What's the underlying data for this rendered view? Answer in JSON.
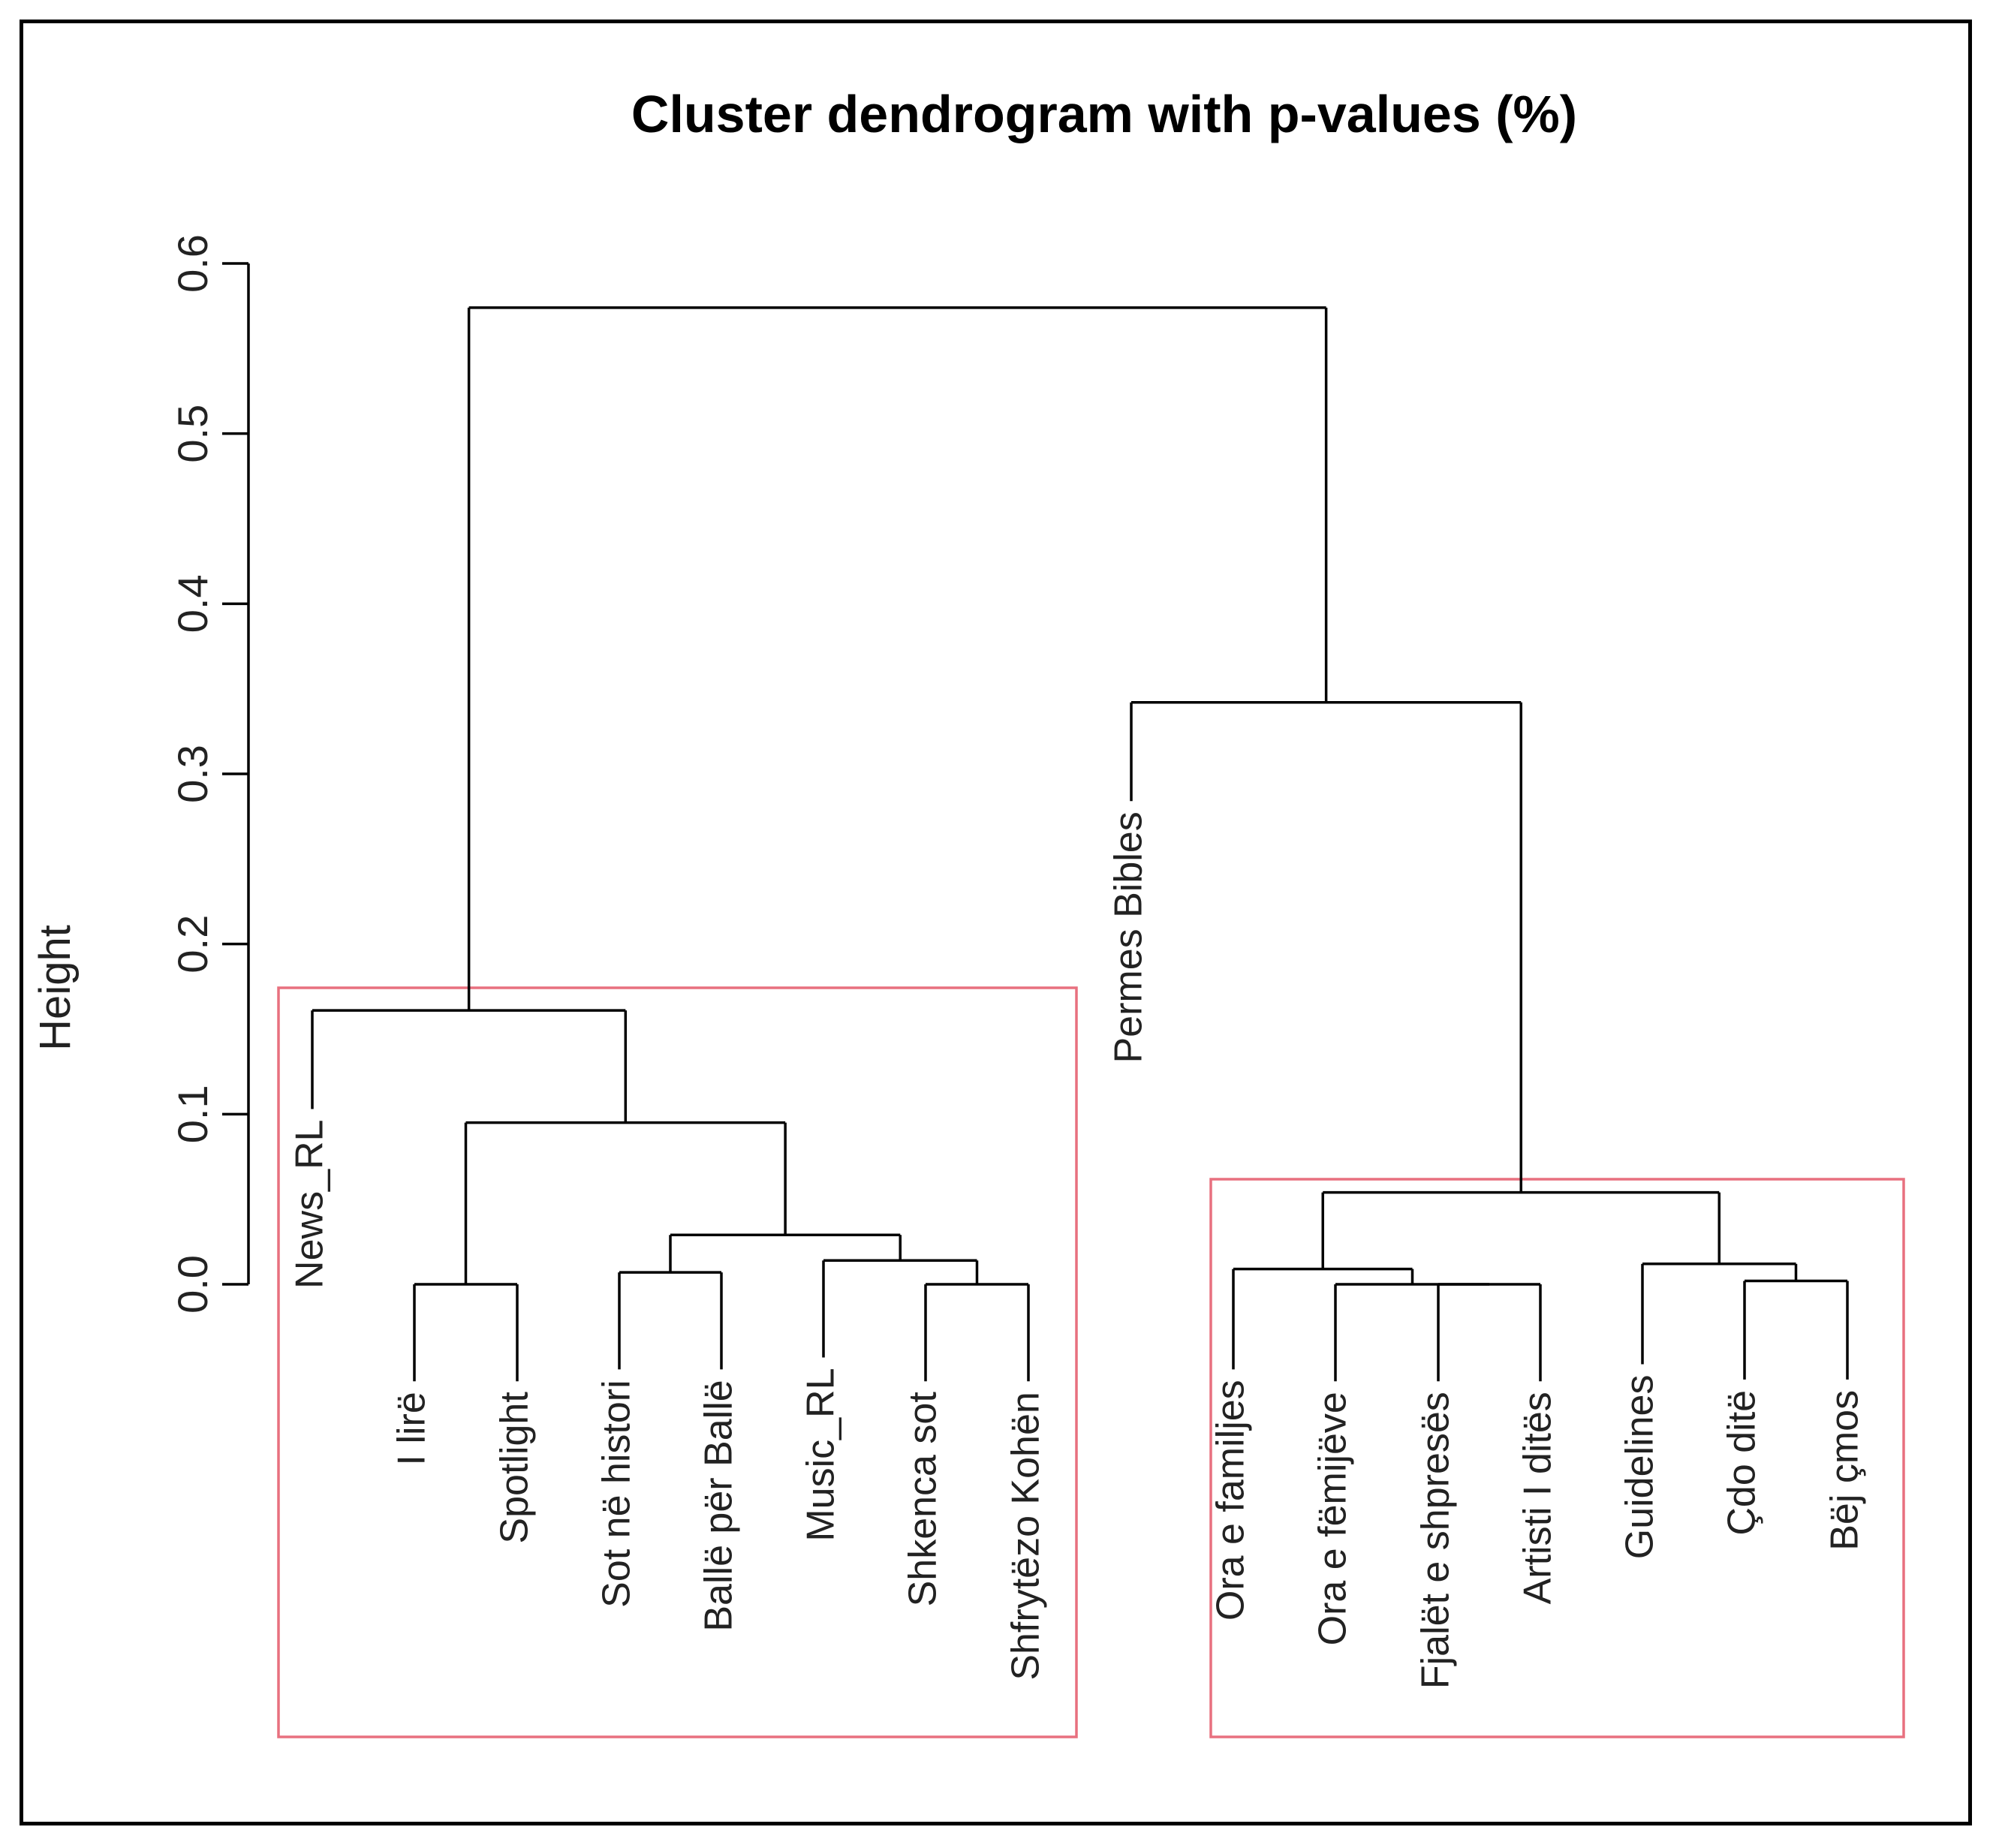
{
  "chart_data": {
    "type": "dendrogram",
    "title": "Cluster dendrogram with p-values (%)",
    "ylabel": "Height",
    "ylim": [
      0,
      0.6
    ],
    "yticks": [
      "0.0",
      "0.1",
      "0.2",
      "0.3",
      "0.4",
      "0.5",
      "0.6"
    ],
    "ytick_values": [
      0,
      0.1,
      0.2,
      0.3,
      0.4,
      0.5,
      0.6
    ],
    "leaves": [
      {
        "id": "news_rl",
        "label": "News_RL",
        "height": 0.103
      },
      {
        "id": "i_lire",
        "label": "I lirë",
        "height": -0.057
      },
      {
        "id": "spotlight",
        "label": "Spotlight",
        "height": -0.057
      },
      {
        "id": "sot_ne_histori",
        "label": "Sot në histori",
        "height": -0.05
      },
      {
        "id": "balle_per_balle",
        "label": "Ballë për Ballë",
        "height": -0.05
      },
      {
        "id": "music_rl",
        "label": "Music_RL",
        "height": -0.043
      },
      {
        "id": "shkenca_sot",
        "label": "Shkenca sot",
        "height": -0.057
      },
      {
        "id": "shfrytezo_kohen",
        "label": "Shfrytëzo Kohën",
        "height": -0.057
      },
      {
        "id": "permes_bibles",
        "label": "Permes Bibles",
        "height": 0.284
      },
      {
        "id": "ora_e_familjes",
        "label": "Ora e familjes",
        "height": -0.05
      },
      {
        "id": "ora_e_femijeve",
        "label": "Ora e fëmijëve",
        "height": -0.057
      },
      {
        "id": "fjalet_e_shpreses",
        "label": "Fjalët e shpresës",
        "height": -0.057
      },
      {
        "id": "artisti_i_dites",
        "label": "Artisti I ditës",
        "height": -0.057
      },
      {
        "id": "guidelines",
        "label": "Guidelines",
        "height": -0.047
      },
      {
        "id": "cdo_dite",
        "label": "Çdo ditë",
        "height": -0.056
      },
      {
        "id": "bej_cmos",
        "label": "Bëj çmos",
        "height": -0.056
      }
    ],
    "merges": [
      {
        "id": "m1",
        "children": [
          "i_lire",
          "spotlight"
        ],
        "height": 0.0
      },
      {
        "id": "m2",
        "children": [
          "shkenca_sot",
          "shfrytezo_kohen"
        ],
        "height": 0.0
      },
      {
        "id": "m3",
        "children": [
          "music_rl",
          "m2"
        ],
        "height": 0.014
      },
      {
        "id": "m4",
        "children": [
          "sot_ne_histori",
          "balle_per_balle"
        ],
        "height": 0.007
      },
      {
        "id": "m5",
        "children": [
          "m4",
          "m3"
        ],
        "height": 0.029
      },
      {
        "id": "m6",
        "children": [
          "m1",
          "m5"
        ],
        "height": 0.095
      },
      {
        "id": "m7",
        "children": [
          "news_rl",
          "m6"
        ],
        "height": 0.161
      },
      {
        "id": "m8",
        "children": [
          "fjalet_e_shpreses",
          "artisti_i_dites"
        ],
        "height": 0.0
      },
      {
        "id": "m9",
        "children": [
          "ora_e_femijeve",
          "m8"
        ],
        "height": 0.0
      },
      {
        "id": "m10",
        "children": [
          "ora_e_familjes",
          "m9"
        ],
        "height": 0.009
      },
      {
        "id": "m11",
        "children": [
          "cdo_dite",
          "bej_cmos"
        ],
        "height": 0.002
      },
      {
        "id": "m12",
        "children": [
          "guidelines",
          "m11"
        ],
        "height": 0.012
      },
      {
        "id": "m13",
        "children": [
          "m10",
          "m12"
        ],
        "height": 0.054
      },
      {
        "id": "m14",
        "children": [
          "permes_bibles",
          "m13"
        ],
        "height": 0.342
      },
      {
        "id": "m15",
        "children": [
          "m7",
          "m14"
        ],
        "height": 0.574
      }
    ],
    "leaf_positions_note": "leaf order left to right",
    "cluster_boxes": [
      {
        "members": [
          "news_rl",
          "i_lire",
          "spotlight",
          "sot_ne_histori",
          "balle_per_balle",
          "music_rl",
          "shkenca_sot",
          "shfrytezo_kohen"
        ],
        "color": "#e8707f"
      },
      {
        "members": [
          "ora_e_familjes",
          "ora_e_femijeve",
          "fjalet_e_shpreses",
          "artisti_i_dites",
          "guidelines",
          "cdo_dite",
          "bej_cmos"
        ],
        "color": "#e8707f"
      }
    ],
    "grid": false,
    "colors": {
      "lines": "#000000",
      "boxes": "#e8707f"
    }
  }
}
